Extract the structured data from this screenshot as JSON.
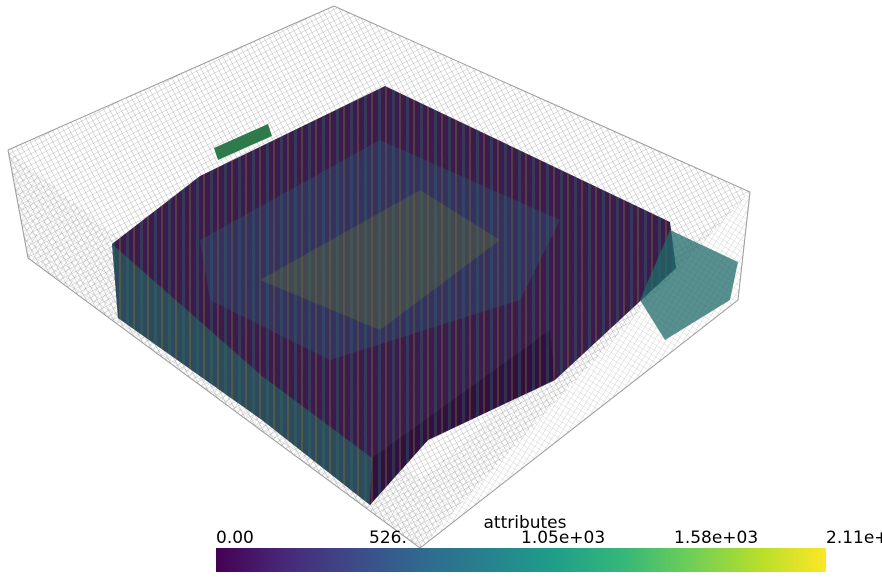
{
  "scene": {
    "description_type": "3d-volume-render",
    "colormap": [
      "#440154",
      "#482878",
      "#3e4989",
      "#31688e",
      "#26828e",
      "#1f9e89",
      "#35b779",
      "#6ece58",
      "#b5de2b",
      "#fde725"
    ],
    "mesh_color": "#9a9a9a",
    "background": "#ffffff"
  },
  "colorbar": {
    "title": "attributes",
    "ticks": [
      "0.00",
      "526.",
      "1.05e+03",
      "1.58e+03",
      "2.11e+"
    ]
  }
}
